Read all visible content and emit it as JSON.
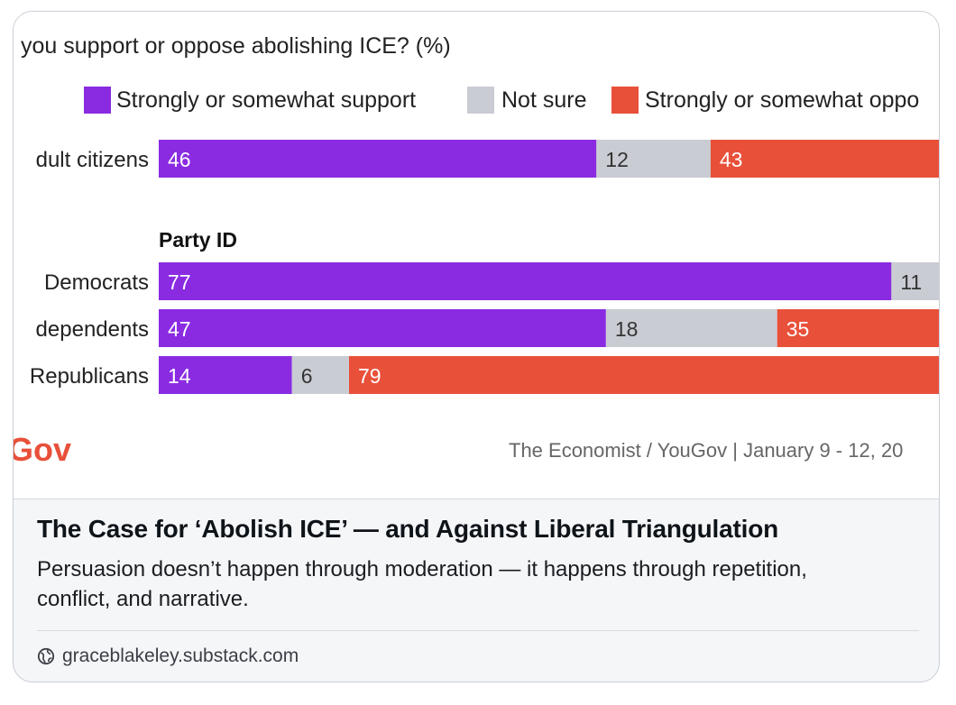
{
  "chart_data": {
    "type": "bar",
    "stacked": true,
    "title": "you support or oppose abolishing ICE? (%)",
    "legend": [
      {
        "label": "Strongly or somewhat support",
        "color": "#8a2be2"
      },
      {
        "label": "Not sure",
        "color": "#c9ccd3"
      },
      {
        "label": "Strongly or somewhat oppo",
        "color": "#e8503a"
      }
    ],
    "section_label": "Party ID",
    "rows": [
      {
        "label": "dult citizens",
        "values": [
          46,
          12,
          43
        ]
      },
      {
        "label": "Democrats",
        "values": [
          77,
          11,
          null
        ]
      },
      {
        "label": "dependents",
        "values": [
          47,
          18,
          35
        ]
      },
      {
        "label": "Republicans",
        "values": [
          14,
          6,
          79
        ]
      }
    ],
    "logo_text": "Gov",
    "source": "The Economist / YouGov | January 9 - 12, 20"
  },
  "card": {
    "headline": "The Case for ‘Abolish ICE’ — and Against Liberal Triangulation",
    "description": "Persuasion doesn’t happen through moderation — it happens through repetition, conflict, and narrative.",
    "domain": "graceblakeley.substack.com",
    "domain_icon": "globe-icon"
  }
}
